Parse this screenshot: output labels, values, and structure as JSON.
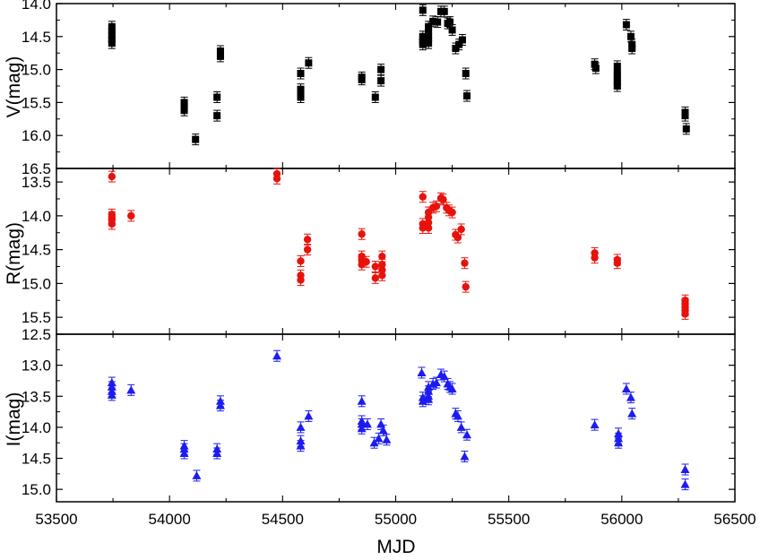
{
  "chart_data": [
    {
      "type": "scatter",
      "panel": "V",
      "title": "",
      "ylabel": "V(mag)",
      "xlabel": "MJD",
      "xlim": [
        53500,
        56500
      ],
      "ylim": [
        14.0,
        16.5
      ],
      "y_inverted": true,
      "yticks": [
        "14.0",
        "14.5",
        "15.0",
        "15.5",
        "16.0",
        "16.5"
      ],
      "marker": "square",
      "color": "#000000",
      "points": [
        [
          53745,
          14.35
        ],
        [
          53745,
          14.42
        ],
        [
          53745,
          14.48
        ],
        [
          53745,
          14.55
        ],
        [
          53745,
          14.6
        ],
        [
          54065,
          15.5
        ],
        [
          54065,
          15.55
        ],
        [
          54065,
          15.62
        ],
        [
          54115,
          16.06
        ],
        [
          54210,
          15.42
        ],
        [
          54210,
          15.7
        ],
        [
          54225,
          14.72
        ],
        [
          54225,
          14.8
        ],
        [
          54580,
          15.06
        ],
        [
          54580,
          15.3
        ],
        [
          54580,
          15.35
        ],
        [
          54580,
          15.42
        ],
        [
          54615,
          14.9
        ],
        [
          54850,
          15.12
        ],
        [
          54850,
          15.15
        ],
        [
          54910,
          15.42
        ],
        [
          54935,
          15.0
        ],
        [
          54935,
          15.17
        ],
        [
          55120,
          14.1
        ],
        [
          55120,
          14.5
        ],
        [
          55120,
          14.55
        ],
        [
          55120,
          14.58
        ],
        [
          55120,
          14.62
        ],
        [
          55145,
          14.35
        ],
        [
          55145,
          14.42
        ],
        [
          55145,
          14.48
        ],
        [
          55145,
          14.55
        ],
        [
          55145,
          14.6
        ],
        [
          55165,
          14.27
        ],
        [
          55185,
          14.28
        ],
        [
          55200,
          14.12
        ],
        [
          55215,
          14.12
        ],
        [
          55230,
          14.3
        ],
        [
          55240,
          14.28
        ],
        [
          55250,
          14.4
        ],
        [
          55265,
          14.68
        ],
        [
          55280,
          14.62
        ],
        [
          55295,
          14.55
        ],
        [
          55310,
          15.06
        ],
        [
          55315,
          15.4
        ],
        [
          55880,
          14.92
        ],
        [
          55885,
          14.98
        ],
        [
          55980,
          14.95
        ],
        [
          55980,
          15.05
        ],
        [
          55980,
          15.12
        ],
        [
          55980,
          15.2
        ],
        [
          55980,
          15.25
        ],
        [
          56020,
          14.32
        ],
        [
          56040,
          14.5
        ],
        [
          56045,
          14.62
        ],
        [
          56045,
          14.68
        ],
        [
          56280,
          15.65
        ],
        [
          56280,
          15.7
        ],
        [
          56285,
          15.9
        ]
      ]
    },
    {
      "type": "scatter",
      "panel": "R",
      "title": "",
      "ylabel": "R(mag)",
      "xlabel": "MJD",
      "xlim": [
        53500,
        56500
      ],
      "ylim": [
        13.3,
        15.75
      ],
      "y_inverted": true,
      "yticks": [
        "13.5",
        "14.0",
        "14.5",
        "15.0",
        "15.5"
      ],
      "marker": "circle",
      "color": "#e8120c",
      "points": [
        [
          53745,
          13.42
        ],
        [
          53745,
          13.98
        ],
        [
          53745,
          14.02
        ],
        [
          53745,
          14.06
        ],
        [
          53745,
          14.12
        ],
        [
          53830,
          14.0
        ],
        [
          54475,
          13.38
        ],
        [
          54475,
          13.45
        ],
        [
          54580,
          14.67
        ],
        [
          54580,
          14.88
        ],
        [
          54580,
          14.95
        ],
        [
          54610,
          14.35
        ],
        [
          54610,
          14.5
        ],
        [
          54850,
          14.27
        ],
        [
          54850,
          14.6
        ],
        [
          54850,
          14.65
        ],
        [
          54850,
          14.72
        ],
        [
          54870,
          14.68
        ],
        [
          54910,
          14.75
        ],
        [
          54910,
          14.92
        ],
        [
          54940,
          14.6
        ],
        [
          54940,
          14.72
        ],
        [
          54940,
          14.8
        ],
        [
          54940,
          14.88
        ],
        [
          55120,
          13.72
        ],
        [
          55120,
          14.12
        ],
        [
          55120,
          14.18
        ],
        [
          55145,
          13.95
        ],
        [
          55145,
          14.02
        ],
        [
          55145,
          14.1
        ],
        [
          55145,
          14.18
        ],
        [
          55165,
          13.88
        ],
        [
          55180,
          13.86
        ],
        [
          55200,
          13.74
        ],
        [
          55210,
          13.76
        ],
        [
          55225,
          13.88
        ],
        [
          55235,
          13.92
        ],
        [
          55250,
          13.95
        ],
        [
          55265,
          14.28
        ],
        [
          55275,
          14.32
        ],
        [
          55290,
          14.2
        ],
        [
          55305,
          14.7
        ],
        [
          55310,
          15.05
        ],
        [
          55880,
          14.55
        ],
        [
          55880,
          14.62
        ],
        [
          55980,
          14.65
        ],
        [
          55980,
          14.7
        ],
        [
          56280,
          15.25
        ],
        [
          56280,
          15.3
        ],
        [
          56280,
          15.35
        ],
        [
          56280,
          15.4
        ],
        [
          56280,
          15.45
        ]
      ]
    },
    {
      "type": "scatter",
      "panel": "I",
      "title": "",
      "ylabel": "I(mag)",
      "xlabel": "MJD",
      "xlim": [
        53500,
        56500
      ],
      "ylim": [
        12.5,
        15.2
      ],
      "y_inverted": true,
      "yticks": [
        "12.5",
        "13.0",
        "13.5",
        "14.0",
        "14.5",
        "15.0"
      ],
      "xticks": [
        "53500",
        "54000",
        "54500",
        "55000",
        "55500",
        "56000",
        "56500"
      ],
      "marker": "triangle",
      "color": "#1c1cf0",
      "points": [
        [
          53745,
          13.28
        ],
        [
          53745,
          13.35
        ],
        [
          53745,
          13.42
        ],
        [
          53745,
          13.48
        ],
        [
          53830,
          13.4
        ],
        [
          54065,
          14.3
        ],
        [
          54065,
          14.35
        ],
        [
          54065,
          14.42
        ],
        [
          54120,
          14.78
        ],
        [
          54210,
          14.35
        ],
        [
          54210,
          14.42
        ],
        [
          54225,
          13.58
        ],
        [
          54225,
          13.65
        ],
        [
          54475,
          12.85
        ],
        [
          54580,
          14.0
        ],
        [
          54580,
          14.22
        ],
        [
          54580,
          14.3
        ],
        [
          54615,
          13.82
        ],
        [
          54850,
          13.58
        ],
        [
          54850,
          13.9
        ],
        [
          54850,
          13.95
        ],
        [
          54850,
          14.02
        ],
        [
          54875,
          13.95
        ],
        [
          54905,
          14.25
        ],
        [
          54925,
          14.18
        ],
        [
          54935,
          13.95
        ],
        [
          54945,
          14.05
        ],
        [
          54960,
          14.2
        ],
        [
          55115,
          13.12
        ],
        [
          55120,
          13.52
        ],
        [
          55120,
          13.58
        ],
        [
          55145,
          13.35
        ],
        [
          55145,
          13.42
        ],
        [
          55145,
          13.5
        ],
        [
          55145,
          13.55
        ],
        [
          55165,
          13.3
        ],
        [
          55180,
          13.28
        ],
        [
          55200,
          13.15
        ],
        [
          55215,
          13.18
        ],
        [
          55230,
          13.3
        ],
        [
          55240,
          13.35
        ],
        [
          55250,
          13.38
        ],
        [
          55265,
          13.78
        ],
        [
          55275,
          13.82
        ],
        [
          55290,
          14.0
        ],
        [
          55305,
          14.47
        ],
        [
          55315,
          14.12
        ],
        [
          55880,
          13.96
        ],
        [
          55985,
          14.1
        ],
        [
          55985,
          14.18
        ],
        [
          55985,
          14.25
        ],
        [
          56020,
          13.38
        ],
        [
          56040,
          13.52
        ],
        [
          56045,
          13.78
        ],
        [
          56280,
          14.68
        ],
        [
          56280,
          14.92
        ]
      ]
    }
  ],
  "x_axis_title": "MJD",
  "colors": {
    "V": "#000000",
    "R": "#e8120c",
    "I": "#1c1cf0"
  },
  "marker_icons": [
    "square-marker-icon",
    "circle-marker-icon",
    "triangle-marker-icon"
  ]
}
